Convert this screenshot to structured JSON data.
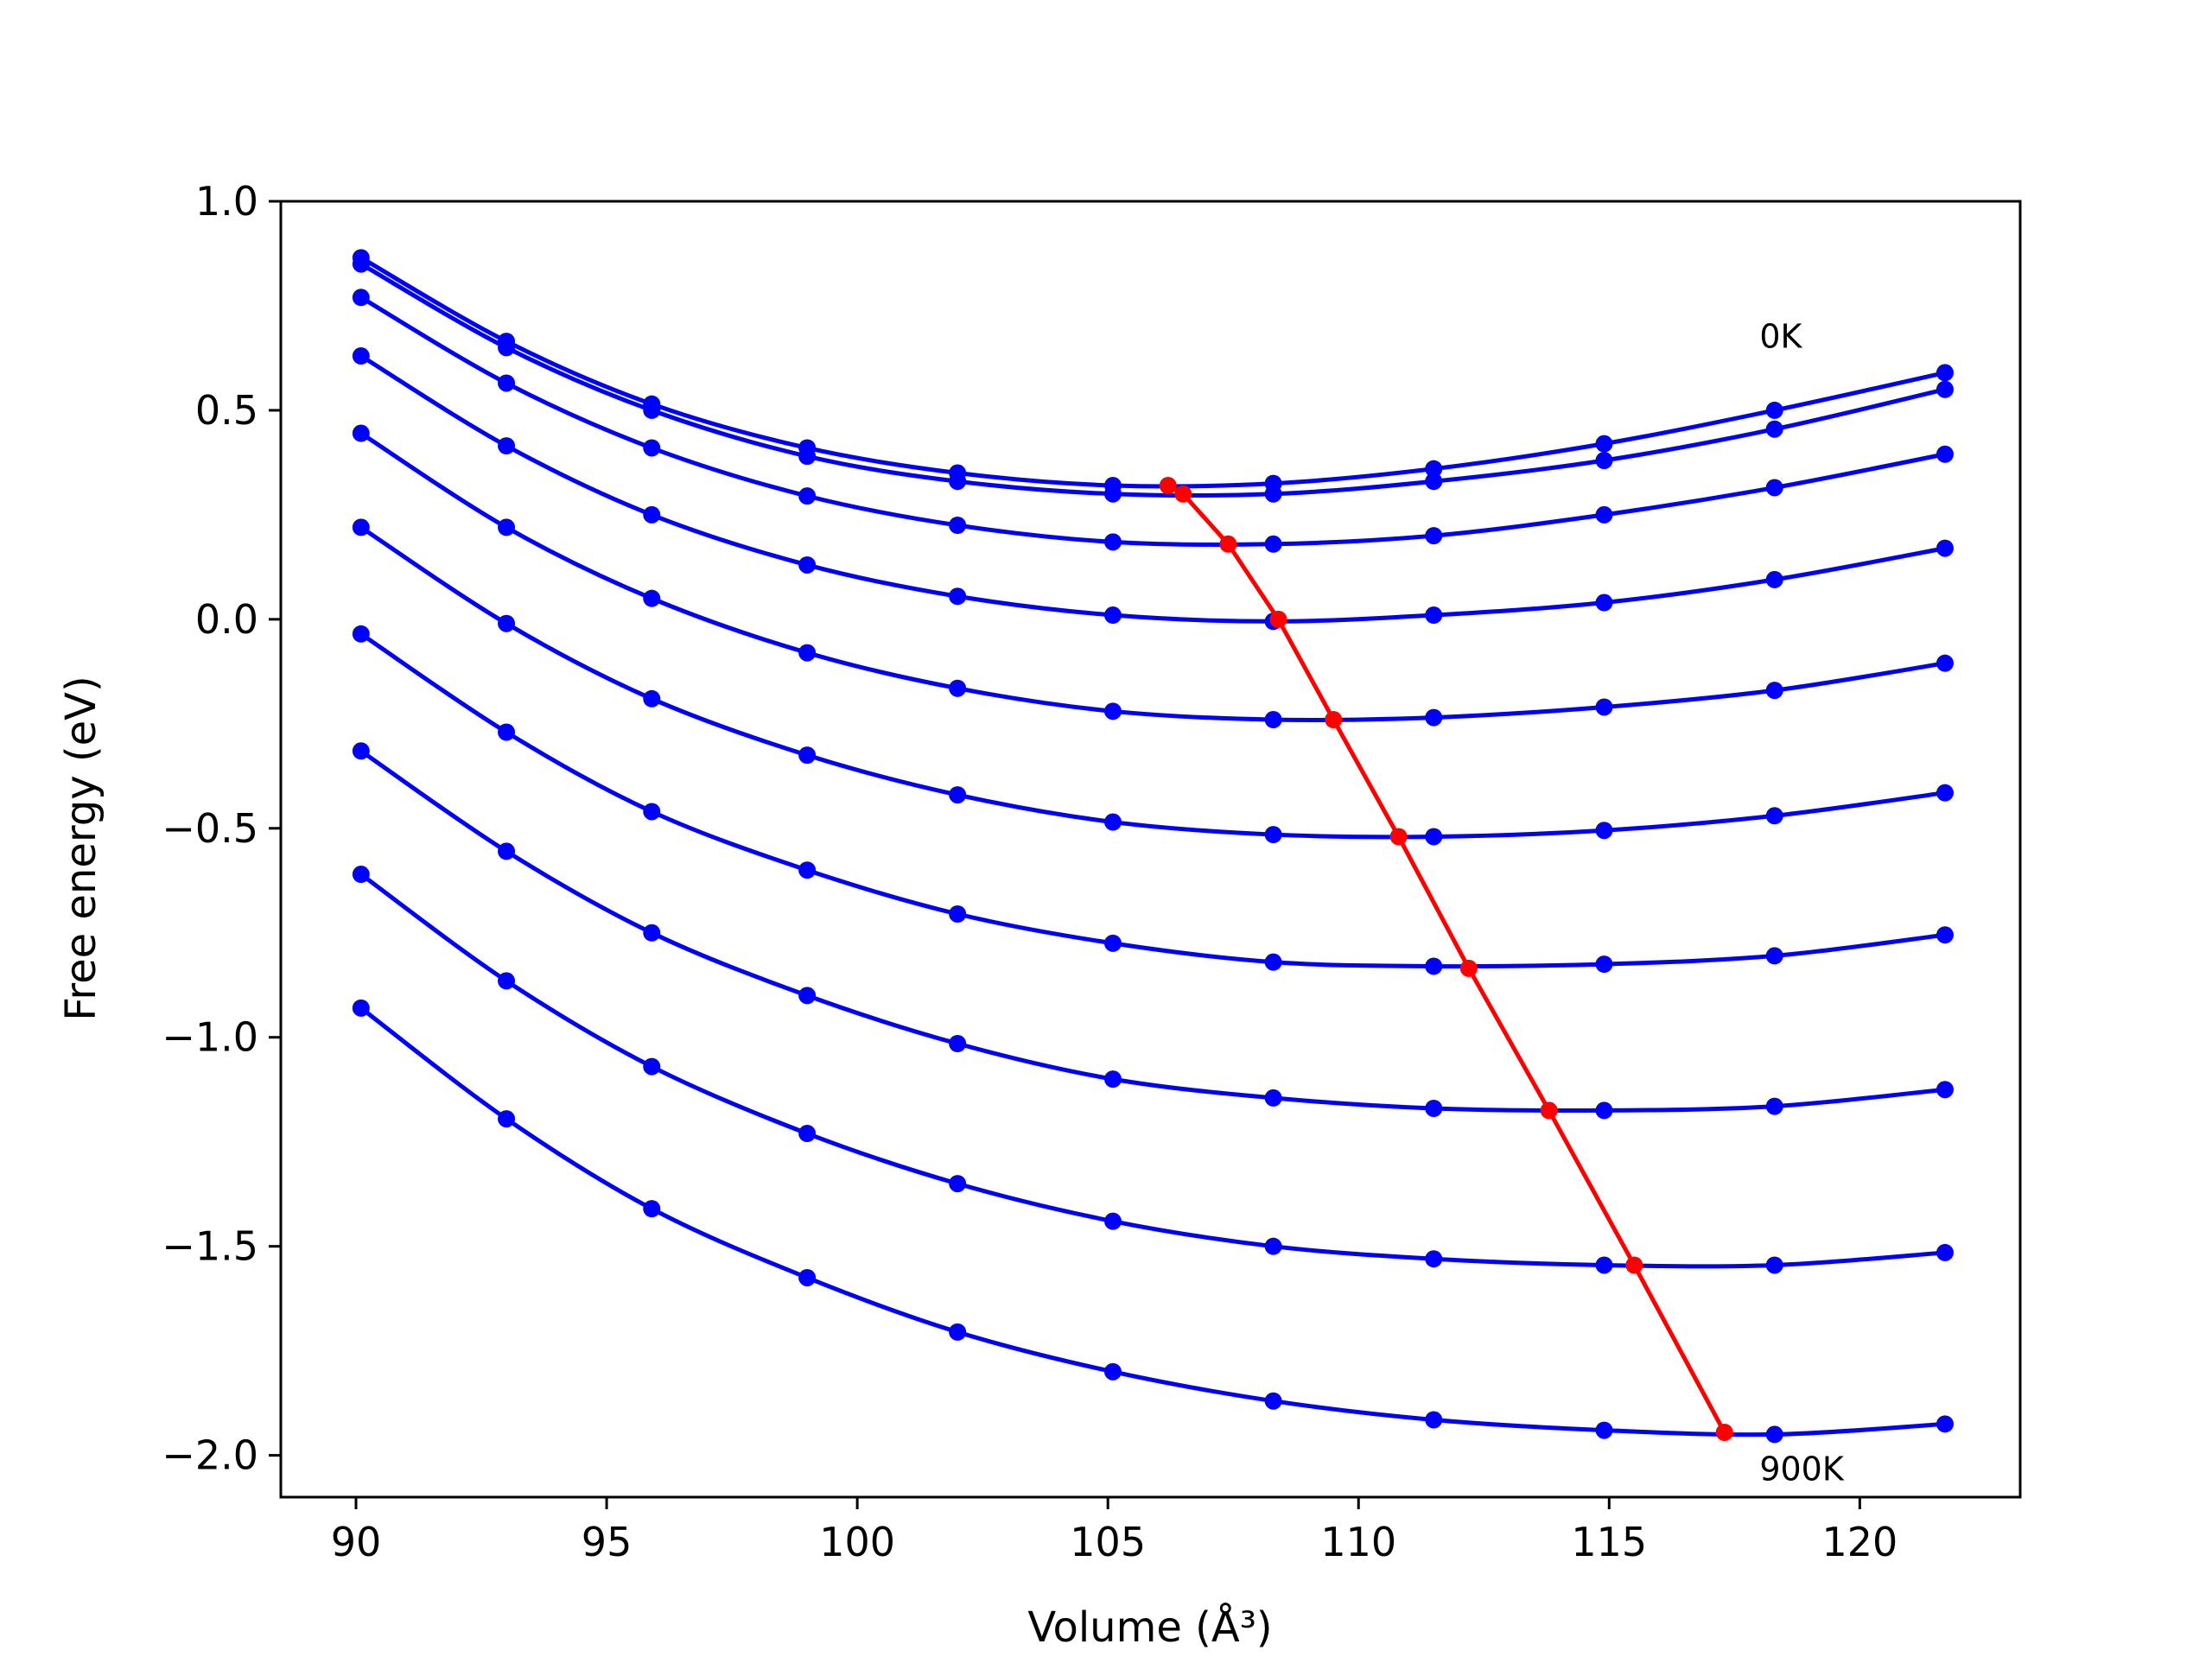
{
  "chart_data": {
    "type": "line",
    "xlabel": "Volume (Å³)",
    "ylabel": "Free energy (eV)",
    "xlim": [
      88.5,
      123.2
    ],
    "ylim": [
      -2.1,
      1.0
    ],
    "xticks": [
      "90",
      "95",
      "100",
      "105",
      "110",
      "115",
      "120"
    ],
    "yticks": [
      "1.0",
      "0.5",
      "0.0",
      "−0.5",
      "−1.0",
      "−1.5",
      "−2.0"
    ],
    "xtick_values": [
      90,
      95,
      100,
      105,
      110,
      115,
      120
    ],
    "ytick_values": [
      1.0,
      0.5,
      0.0,
      -0.5,
      -1.0,
      -1.5,
      -2.0
    ],
    "annotations": [
      {
        "text": "0K",
        "x": 118.0,
        "y": 0.65
      },
      {
        "text": "900K",
        "x": 118.0,
        "y": -2.06
      }
    ],
    "x": [
      90.1,
      93.0,
      95.9,
      99.0,
      102.0,
      105.1,
      108.3,
      111.5,
      114.9,
      118.3,
      121.7
    ],
    "series": [
      {
        "color": "#0000ff",
        "values": [
          0.865,
          0.665,
          0.515,
          0.41,
          0.35,
          0.32,
          0.325,
          0.36,
          0.42,
          0.5,
          0.59
        ]
      },
      {
        "color": "#0000ff",
        "values": [
          0.85,
          0.65,
          0.5,
          0.39,
          0.33,
          0.3,
          0.3,
          0.33,
          0.38,
          0.455,
          0.55
        ]
      },
      {
        "color": "#0000ff",
        "values": [
          0.77,
          0.565,
          0.41,
          0.295,
          0.225,
          0.185,
          0.18,
          0.2,
          0.25,
          0.315,
          0.395
        ]
      },
      {
        "color": "#0000ff",
        "values": [
          0.63,
          0.415,
          0.25,
          0.13,
          0.055,
          0.01,
          -0.005,
          0.01,
          0.04,
          0.095,
          0.17
        ]
      },
      {
        "color": "#0000ff",
        "values": [
          0.445,
          0.22,
          0.05,
          -0.08,
          -0.165,
          -0.22,
          -0.24,
          -0.235,
          -0.21,
          -0.17,
          -0.105
        ]
      },
      {
        "color": "#0000ff",
        "values": [
          0.22,
          -0.01,
          -0.19,
          -0.325,
          -0.42,
          -0.485,
          -0.515,
          -0.52,
          -0.505,
          -0.47,
          -0.415
        ]
      },
      {
        "color": "#0000ff",
        "values": [
          -0.035,
          -0.27,
          -0.46,
          -0.6,
          -0.705,
          -0.775,
          -0.82,
          -0.83,
          -0.825,
          -0.805,
          -0.755
        ]
      },
      {
        "color": "#0000ff",
        "values": [
          -0.315,
          -0.555,
          -0.75,
          -0.9,
          -1.015,
          -1.1,
          -1.145,
          -1.17,
          -1.175,
          -1.165,
          -1.125
        ]
      },
      {
        "color": "#0000ff",
        "values": [
          -0.61,
          -0.865,
          -1.07,
          -1.23,
          -1.35,
          -1.44,
          -1.5,
          -1.53,
          -1.545,
          -1.545,
          -1.515
        ]
      },
      {
        "color": "#0000ff",
        "values": [
          -0.93,
          -1.195,
          -1.41,
          -1.575,
          -1.705,
          -1.8,
          -1.87,
          -1.915,
          -1.94,
          -1.95,
          -1.925
        ]
      }
    ],
    "minimum_curve": {
      "color": "#ff0000",
      "x": [
        106.2,
        106.5,
        107.4,
        108.4,
        109.5,
        110.8,
        112.2,
        113.8,
        115.5,
        117.3
      ],
      "y": [
        0.32,
        0.3,
        0.18,
        0.0,
        -0.24,
        -0.52,
        -0.835,
        -1.175,
        -1.545,
        -1.945
      ]
    }
  }
}
